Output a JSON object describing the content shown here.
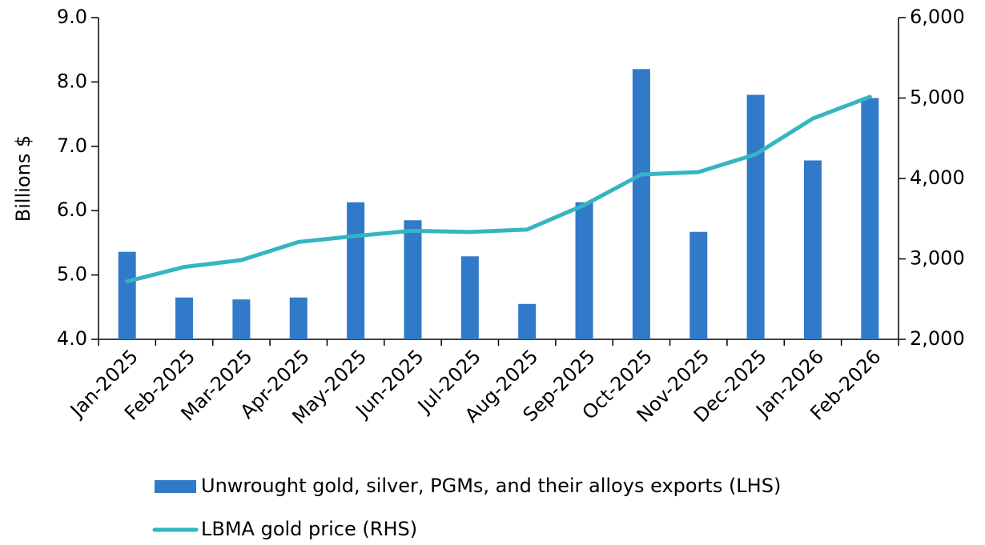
{
  "chart_data": {
    "type": "bar_line",
    "y_label": "Billions $",
    "categories": [
      "Jan-2025",
      "Feb-2025",
      "Mar-2025",
      "Apr-2025",
      "May-2025",
      "Jun-2025",
      "Jul-2025",
      "Aug-2025",
      "Sep-2025",
      "Oct-2025",
      "Nov-2025",
      "Dec-2025",
      "Jan-2026",
      "Feb-2026"
    ],
    "series": [
      {
        "name": "Unwrought gold, silver, PGMs, and their alloys exports (LHS)",
        "type": "bar",
        "axis": "y",
        "color": "#3179c9",
        "values": [
          5.36,
          4.65,
          4.62,
          4.65,
          6.13,
          5.85,
          5.29,
          4.55,
          6.13,
          8.2,
          5.67,
          7.8,
          6.78,
          7.75
        ]
      },
      {
        "name": "LBMA gold price (RHS)",
        "type": "line",
        "axis": "y2",
        "color": "#35b5c0",
        "values": [
          2720,
          2900,
          2985,
          3210,
          3285,
          3350,
          3335,
          3365,
          3670,
          4050,
          4080,
          4300,
          4745,
          5015
        ]
      }
    ],
    "ylim": [
      4,
      9
    ],
    "yticks": [
      {
        "value": 4,
        "label": "4.0"
      },
      {
        "value": 5,
        "label": "5.0"
      },
      {
        "value": 6,
        "label": "6.0"
      },
      {
        "value": 7,
        "label": "7.0"
      },
      {
        "value": 8,
        "label": "8.0"
      },
      {
        "value": 9,
        "label": "9.0"
      }
    ],
    "y2lim": [
      2000,
      6000
    ],
    "y2ticks": [
      {
        "value": 2000,
        "label": "2,000"
      },
      {
        "value": 3000,
        "label": "3,000"
      },
      {
        "value": 4000,
        "label": "4,000"
      },
      {
        "value": 5000,
        "label": "5,000"
      },
      {
        "value": 6000,
        "label": "6,000"
      }
    ],
    "grid": false,
    "legend": "bottom"
  }
}
